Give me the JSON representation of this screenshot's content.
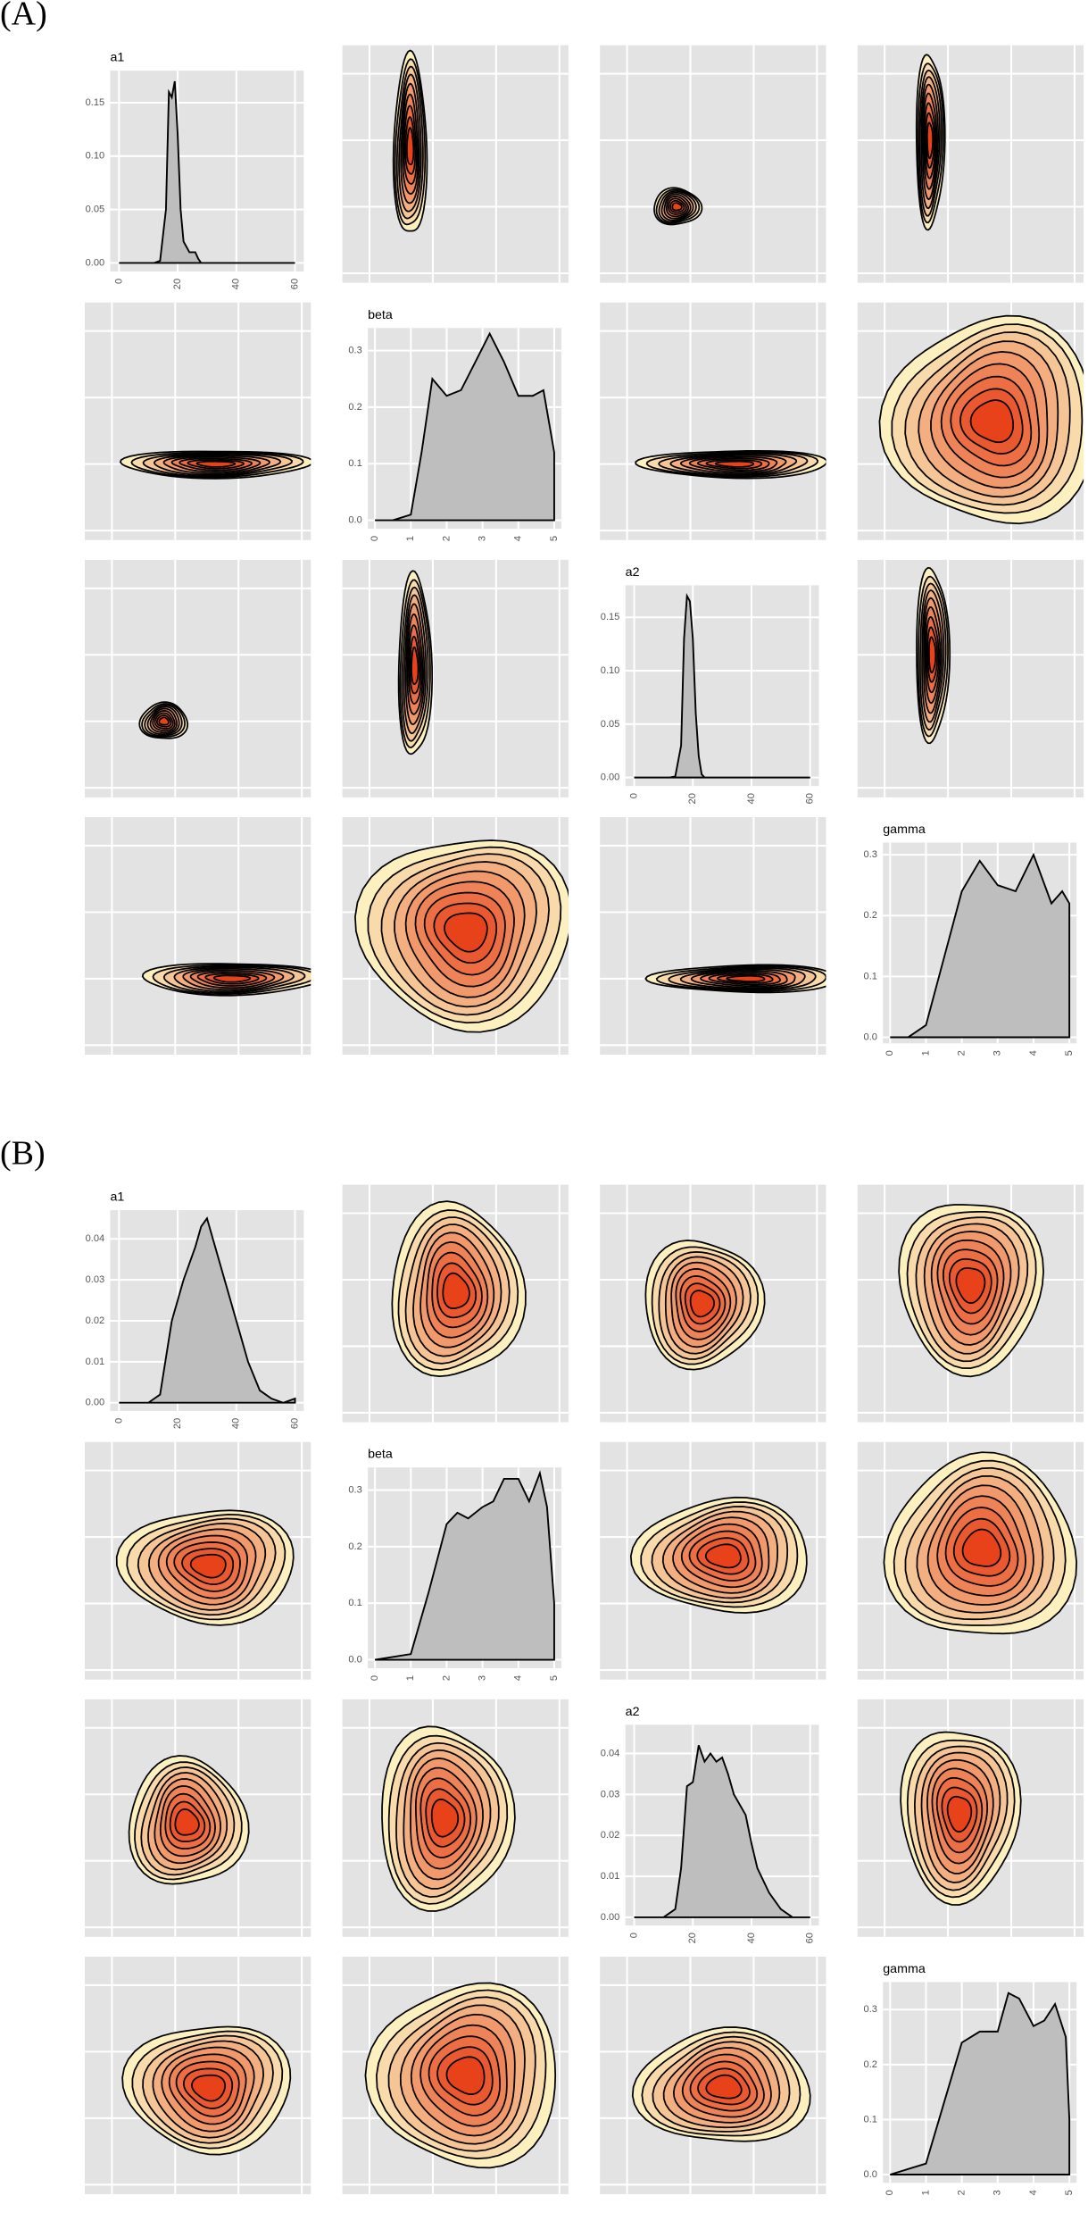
{
  "panel_labels": [
    "(A)",
    "(B)"
  ],
  "chart_data": [
    {
      "type": "area",
      "title": "a1",
      "color": "#bebebe",
      "grid": true,
      "x": [
        0,
        12,
        14,
        16,
        17,
        18,
        19,
        20,
        21,
        22,
        24,
        26,
        27,
        28,
        30,
        60
      ],
      "values": [
        0,
        0,
        0.002,
        0.05,
        0.16,
        0.155,
        0.17,
        0.12,
        0.05,
        0.02,
        0.01,
        0.01,
        0.004,
        0,
        0,
        0
      ],
      "xlim": [
        -3,
        63
      ],
      "xticks": [
        0,
        20,
        40,
        60
      ],
      "ylim": [
        -0.008,
        0.18
      ],
      "yticks": [
        {
          "value": 0,
          "label": "0.00"
        },
        0.05,
        {
          "value": 0.1,
          "label": "0.10"
        },
        0.15
      ]
    },
    {
      "type": "area",
      "title": "beta",
      "color": "#bebebe",
      "grid": true,
      "x": [
        0,
        0.5,
        1,
        1.3,
        1.6,
        2,
        2.4,
        2.8,
        3.2,
        3.6,
        4,
        4.4,
        4.7,
        5
      ],
      "values": [
        0,
        0,
        0.01,
        0.12,
        0.25,
        0.22,
        0.23,
        0.28,
        0.33,
        0.28,
        0.22,
        0.22,
        0.23,
        0.12
      ],
      "xlim": [
        -0.2,
        5.2
      ],
      "xticks": [
        0,
        1,
        2,
        3,
        4,
        5
      ],
      "ylim": [
        -0.015,
        0.34
      ],
      "yticks": [
        {
          "value": 0,
          "label": "0.0"
        },
        0.1,
        0.2,
        0.3
      ]
    },
    {
      "type": "area",
      "title": "a2",
      "color": "#bebebe",
      "grid": true,
      "x": [
        0,
        12,
        14,
        16,
        17,
        18,
        19,
        20,
        21,
        22,
        23,
        24,
        60
      ],
      "values": [
        0,
        0,
        0.001,
        0.03,
        0.13,
        0.17,
        0.165,
        0.13,
        0.06,
        0.02,
        0.003,
        0,
        0
      ],
      "xlim": [
        -3,
        63
      ],
      "xticks": [
        0,
        20,
        40,
        60
      ],
      "ylim": [
        -0.008,
        0.18
      ],
      "yticks": [
        {
          "value": 0,
          "label": "0.00"
        },
        0.05,
        {
          "value": 0.1,
          "label": "0.10"
        },
        0.15
      ]
    },
    {
      "type": "area",
      "title": "gamma",
      "color": "#bebebe",
      "grid": true,
      "x": [
        0,
        0.5,
        1,
        1.5,
        2,
        2.5,
        3,
        3.5,
        4,
        4.5,
        4.8,
        5
      ],
      "values": [
        0,
        0,
        0.02,
        0.13,
        0.24,
        0.29,
        0.25,
        0.24,
        0.3,
        0.22,
        0.24,
        0.22
      ],
      "xlim": [
        -0.2,
        5.2
      ],
      "xticks": [
        0,
        1,
        2,
        3,
        4,
        5
      ],
      "ylim": [
        -0.01,
        0.32
      ],
      "yticks": [
        {
          "value": 0,
          "label": "0.0"
        },
        0.1,
        0.2,
        0.3
      ]
    },
    {
      "type": "area",
      "title": "a1",
      "color": "#bebebe",
      "grid": true,
      "x": [
        0,
        10,
        14,
        18,
        22,
        26,
        28,
        30,
        32,
        36,
        40,
        44,
        48,
        52,
        56,
        60
      ],
      "values": [
        0,
        0,
        0.002,
        0.02,
        0.03,
        0.038,
        0.043,
        0.045,
        0.04,
        0.03,
        0.02,
        0.01,
        0.003,
        0.001,
        0,
        0.001
      ],
      "xlim": [
        -3,
        63
      ],
      "xticks": [
        0,
        20,
        40,
        60
      ],
      "ylim": [
        -0.002,
        0.047
      ],
      "yticks": [
        {
          "value": 0,
          "label": "0.00"
        },
        0.01,
        0.02,
        0.03,
        0.04
      ]
    },
    {
      "type": "area",
      "title": "beta",
      "color": "#bebebe",
      "grid": true,
      "x": [
        0,
        1,
        1.5,
        2,
        2.3,
        2.6,
        3,
        3.3,
        3.6,
        4,
        4.3,
        4.6,
        4.8,
        5
      ],
      "values": [
        0,
        0.01,
        0.12,
        0.24,
        0.26,
        0.25,
        0.27,
        0.28,
        0.32,
        0.32,
        0.28,
        0.33,
        0.27,
        0.1
      ],
      "xlim": [
        -0.2,
        5.2
      ],
      "xticks": [
        0,
        1,
        2,
        3,
        4,
        5
      ],
      "ylim": [
        -0.015,
        0.34
      ],
      "yticks": [
        {
          "value": 0,
          "label": "0.0"
        },
        0.1,
        0.2,
        0.3
      ]
    },
    {
      "type": "area",
      "title": "a2",
      "color": "#bebebe",
      "grid": true,
      "x": [
        0,
        10,
        14,
        16,
        18,
        20,
        22,
        24,
        26,
        28,
        30,
        32,
        34,
        38,
        40,
        42,
        46,
        50,
        54,
        60
      ],
      "values": [
        0,
        0,
        0.002,
        0.012,
        0.032,
        0.033,
        0.042,
        0.038,
        0.04,
        0.038,
        0.039,
        0.035,
        0.03,
        0.025,
        0.018,
        0.012,
        0.006,
        0.002,
        0,
        0
      ],
      "xlim": [
        -3,
        63
      ],
      "xticks": [
        0,
        20,
        40,
        60
      ],
      "ylim": [
        -0.002,
        0.047
      ],
      "yticks": [
        {
          "value": 0,
          "label": "0.00"
        },
        0.01,
        0.02,
        0.03,
        0.04
      ]
    },
    {
      "type": "area",
      "title": "gamma",
      "color": "#bebebe",
      "grid": true,
      "x": [
        0,
        1,
        1.5,
        2,
        2.5,
        3,
        3.3,
        3.6,
        4,
        4.3,
        4.6,
        4.9,
        5
      ],
      "values": [
        0,
        0.02,
        0.13,
        0.24,
        0.26,
        0.26,
        0.33,
        0.32,
        0.27,
        0.28,
        0.31,
        0.25,
        0.1
      ],
      "xlim": [
        -0.2,
        5.2
      ],
      "xticks": [
        0,
        1,
        2,
        3,
        4,
        5
      ],
      "ylim": [
        -0.015,
        0.35
      ],
      "yticks": [
        {
          "value": 0,
          "label": "0.0"
        },
        0.1,
        0.2,
        0.3
      ]
    }
  ]
}
